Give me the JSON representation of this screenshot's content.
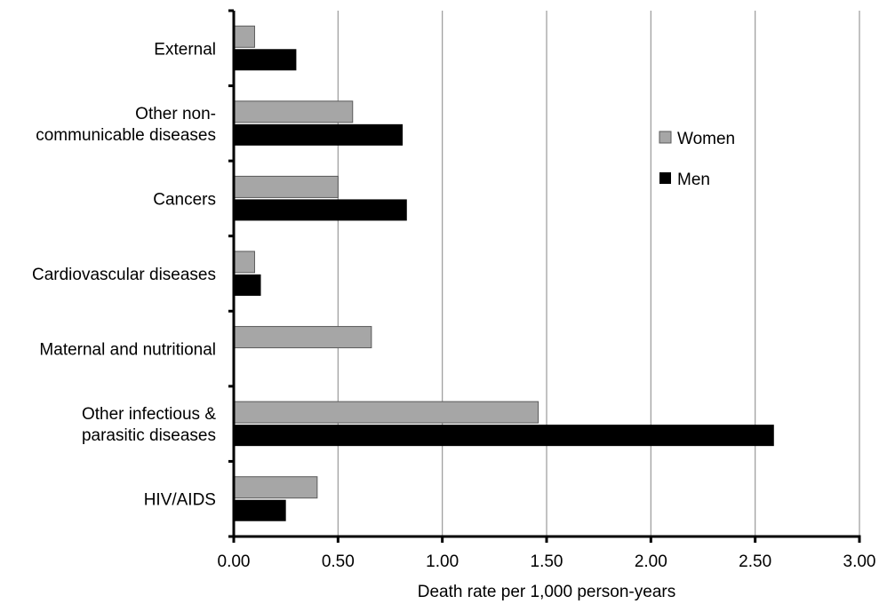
{
  "chart_data": {
    "type": "bar",
    "orientation": "horizontal",
    "categories": [
      [
        "External"
      ],
      [
        "Other non-",
        "communicable diseases"
      ],
      [
        "Cancers"
      ],
      [
        "Cardiovascular diseases"
      ],
      [
        "Maternal and nutritional"
      ],
      [
        "Other infectious &",
        "parasitic diseases"
      ],
      [
        "HIV/AIDS"
      ]
    ],
    "series": [
      {
        "name": "Women",
        "color": "#a6a6a6",
        "values": [
          0.1,
          0.57,
          0.5,
          0.1,
          0.66,
          1.46,
          0.4
        ]
      },
      {
        "name": "Men",
        "color": "#000000",
        "values": [
          0.3,
          0.81,
          0.83,
          0.13,
          0.0,
          2.59,
          0.25
        ]
      }
    ],
    "xlabel": "Death rate per 1,000 person-years",
    "ylabel": "",
    "title": "",
    "xlim": [
      0,
      3.0
    ],
    "xticks": [
      "0.00",
      "0.50",
      "1.00",
      "1.50",
      "2.00",
      "2.50",
      "3.00"
    ],
    "grid": "vertical",
    "legend": "right"
  }
}
